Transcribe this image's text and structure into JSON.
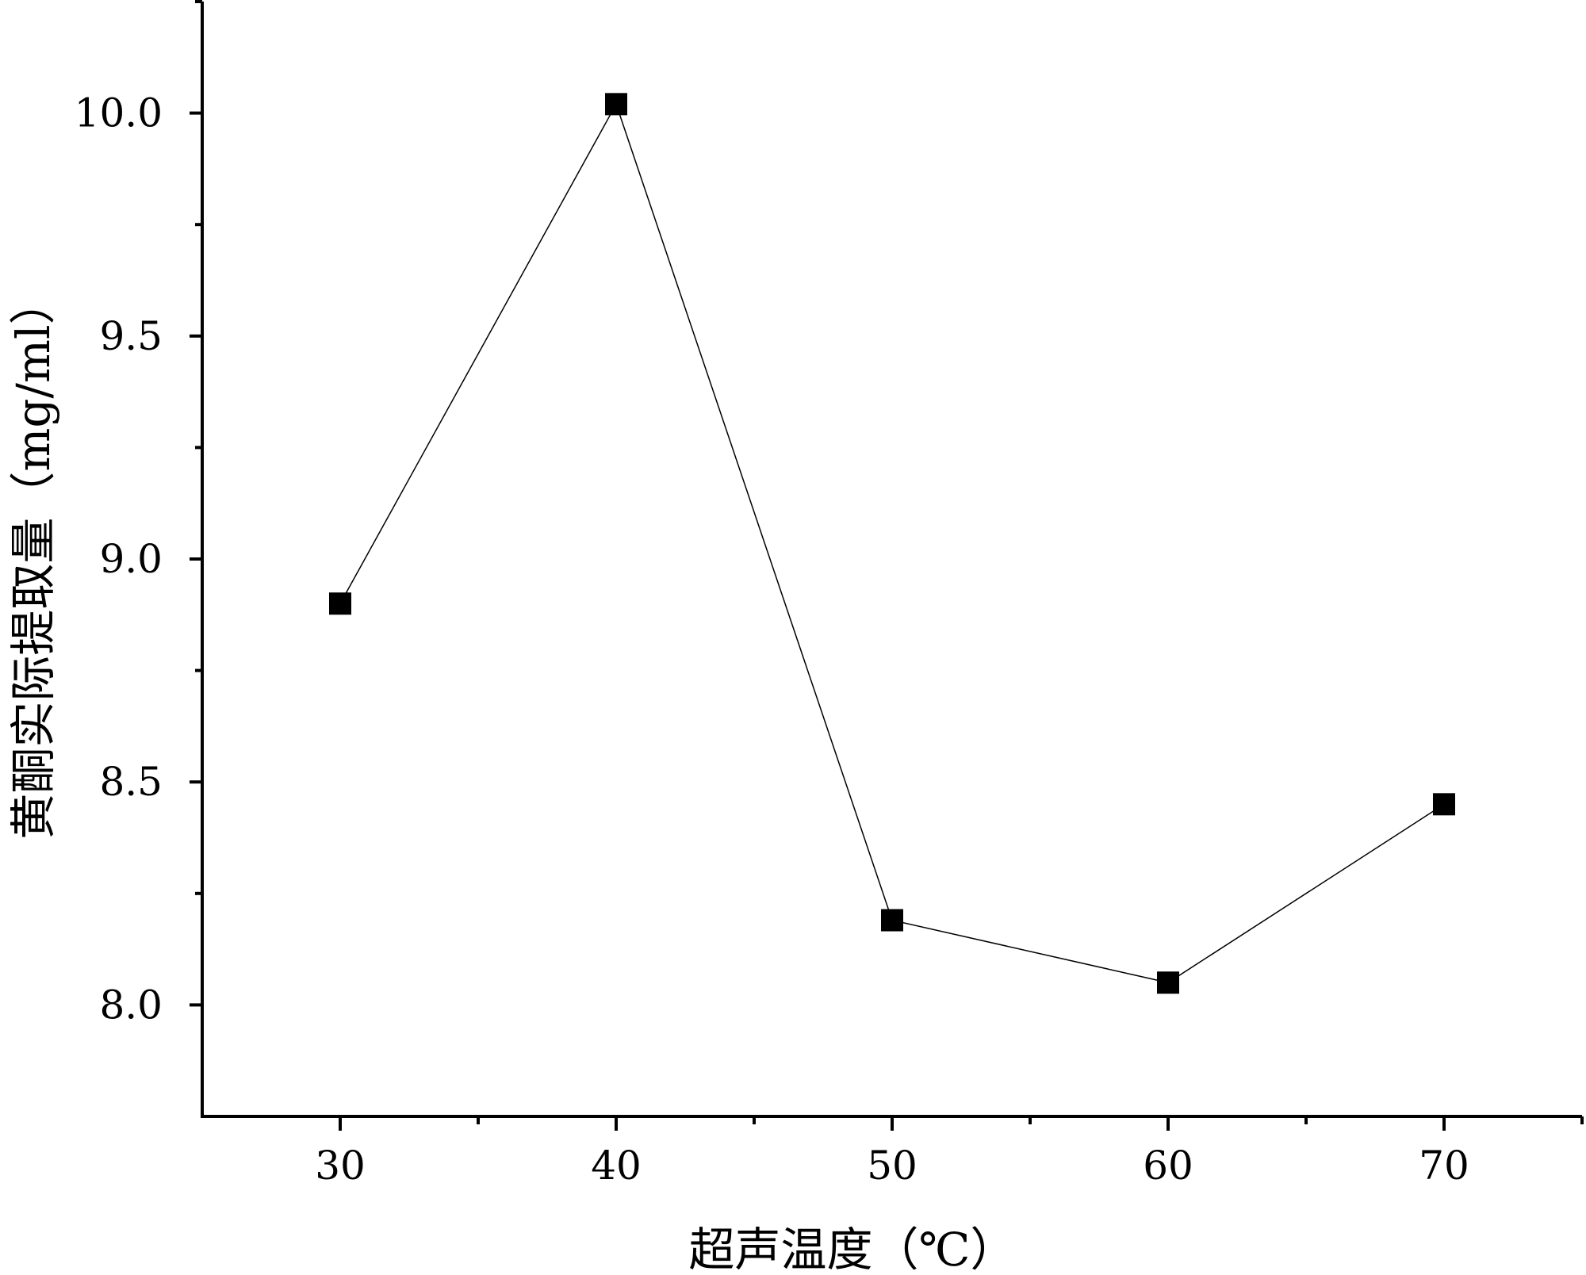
{
  "chart_data": {
    "type": "line",
    "title": "",
    "xlabel": "超声温度（℃）",
    "ylabel": "黄酮实际提取量（mg/ml）",
    "x": [
      30,
      40,
      50,
      60,
      70
    ],
    "series": [
      {
        "name": "",
        "values": [
          8.9,
          10.02,
          8.19,
          8.05,
          8.45
        ]
      }
    ],
    "xlim": [
      25,
      75
    ],
    "ylim": [
      7.75,
      10.25
    ],
    "x_major_ticks": [
      30,
      40,
      50,
      60,
      70
    ],
    "x_tick_labels": [
      "30",
      "40",
      "50",
      "60",
      "70"
    ],
    "x_minor_ticks": [
      35,
      45,
      55,
      65,
      75
    ],
    "y_major_ticks": [
      8.0,
      8.5,
      9.0,
      9.5,
      10.0
    ],
    "y_tick_labels": [
      "8.0",
      "8.5",
      "9.0",
      "9.5",
      "10.0"
    ],
    "y_minor_ticks": [
      8.25,
      8.75,
      9.25,
      9.75,
      10.25
    ],
    "grid": false,
    "legend": "none",
    "marker": "filled-square",
    "line_color": "#000000",
    "marker_color": "#000000"
  }
}
